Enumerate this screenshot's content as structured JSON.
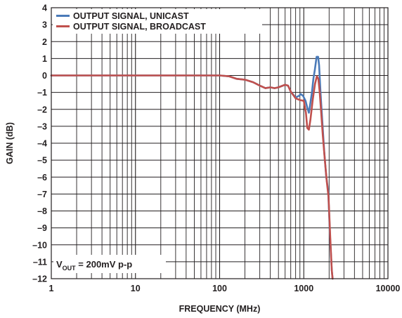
{
  "chart_data": {
    "type": "line",
    "xlabel": "FREQUENCY (MHz)",
    "ylabel": "GAIN (dB)",
    "x_scale": "log",
    "xlim": [
      1,
      10000
    ],
    "ylim": [
      -12,
      4
    ],
    "grid": true,
    "x_ticks": [
      "1",
      "10",
      "100",
      "1000",
      "10000"
    ],
    "y_ticks": [
      "4",
      "3",
      "2",
      "1",
      "0",
      "–1",
      "–2",
      "–3",
      "–4",
      "–5",
      "–6",
      "–7",
      "–8",
      "–9",
      "–10",
      "–11",
      "–12"
    ],
    "legend_position": "top-left",
    "annotation": {
      "prefix": "V",
      "subscript": "OUT",
      "suffix": " = 200mV p-p",
      "position": "bottom-left"
    },
    "series": [
      {
        "name": "OUTPUT SIGNAL, UNICAST",
        "color": "#4a7ab8",
        "points": [
          [
            1,
            0
          ],
          [
            20,
            0
          ],
          [
            50,
            0
          ],
          [
            100,
            0
          ],
          [
            130,
            -0.05
          ],
          [
            160,
            -0.2
          ],
          [
            200,
            -0.25
          ],
          [
            250,
            -0.4
          ],
          [
            300,
            -0.6
          ],
          [
            350,
            -0.75
          ],
          [
            400,
            -0.7
          ],
          [
            450,
            -0.75
          ],
          [
            500,
            -0.7
          ],
          [
            600,
            -0.55
          ],
          [
            650,
            -0.6
          ],
          [
            700,
            -0.95
          ],
          [
            800,
            -1.3
          ],
          [
            880,
            -1.2
          ],
          [
            920,
            -1.1
          ],
          [
            980,
            -1.2
          ],
          [
            1050,
            -1.5
          ],
          [
            1100,
            -1.9
          ],
          [
            1150,
            -2.2
          ],
          [
            1200,
            -1.6
          ],
          [
            1250,
            -1.0
          ],
          [
            1300,
            -0.2
          ],
          [
            1350,
            0.3
          ],
          [
            1420,
            1.1
          ],
          [
            1480,
            1.1
          ],
          [
            1520,
            0.6
          ],
          [
            1580,
            -1.0
          ],
          [
            1650,
            -2.5
          ],
          [
            1750,
            -4.5
          ],
          [
            1850,
            -6.0
          ],
          [
            1950,
            -6.8
          ],
          [
            2050,
            -9.5
          ],
          [
            2150,
            -11.5
          ],
          [
            2200,
            -12
          ]
        ]
      },
      {
        "name": "OUTPUT SIGNAL, BROADCAST",
        "color": "#c0504d",
        "points": [
          [
            1,
            0
          ],
          [
            20,
            0
          ],
          [
            50,
            0
          ],
          [
            100,
            0
          ],
          [
            130,
            -0.05
          ],
          [
            160,
            -0.2
          ],
          [
            200,
            -0.25
          ],
          [
            250,
            -0.4
          ],
          [
            300,
            -0.6
          ],
          [
            350,
            -0.75
          ],
          [
            400,
            -0.7
          ],
          [
            450,
            -0.75
          ],
          [
            500,
            -0.7
          ],
          [
            600,
            -0.55
          ],
          [
            650,
            -0.6
          ],
          [
            700,
            -0.95
          ],
          [
            800,
            -1.35
          ],
          [
            900,
            -1.45
          ],
          [
            1000,
            -1.5
          ],
          [
            1060,
            -2.2
          ],
          [
            1100,
            -3.1
          ],
          [
            1150,
            -3.2
          ],
          [
            1200,
            -2.6
          ],
          [
            1280,
            -1.4
          ],
          [
            1360,
            -0.5
          ],
          [
            1430,
            -0.05
          ],
          [
            1490,
            -0.2
          ],
          [
            1540,
            -0.9
          ],
          [
            1600,
            -2.0
          ],
          [
            1680,
            -3.5
          ],
          [
            1780,
            -5.0
          ],
          [
            1880,
            -6.3
          ],
          [
            1970,
            -7.2
          ],
          [
            2060,
            -9.5
          ],
          [
            2150,
            -11.5
          ],
          [
            2200,
            -12
          ]
        ]
      }
    ]
  }
}
